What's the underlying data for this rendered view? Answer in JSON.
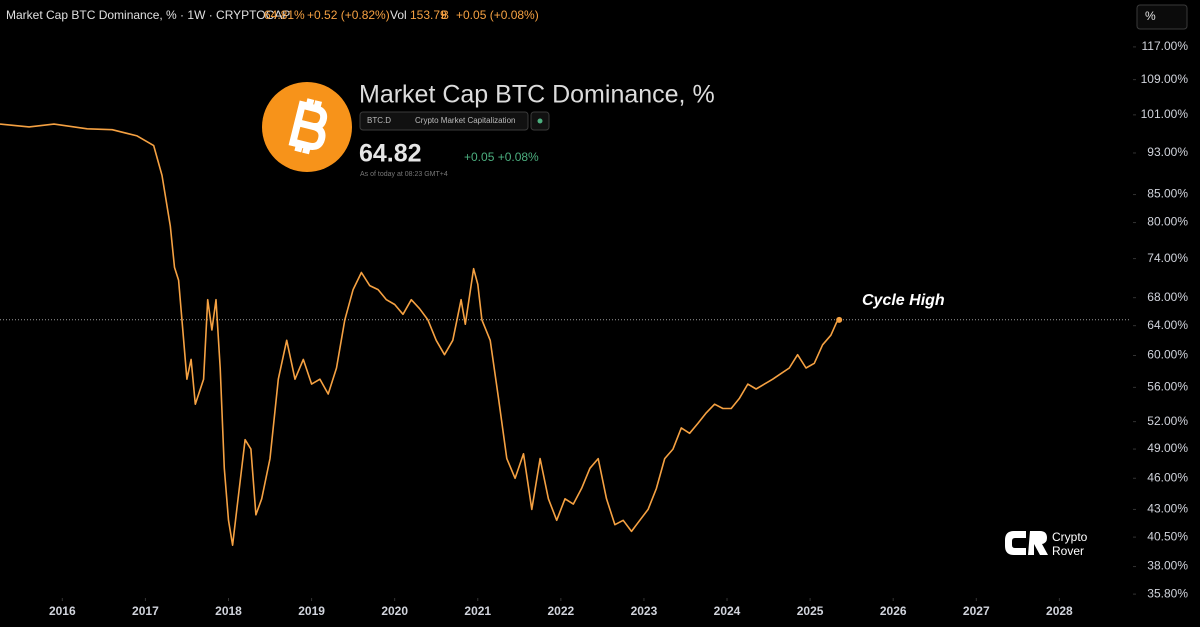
{
  "header": {
    "symbol": "Market Cap BTC Dominance, % · 1W · CRYPTOCAP",
    "last": "64.81%",
    "change": "+0.52 (+0.82%)",
    "vol_label": "Vol",
    "vol_value": "153.79",
    "vol_unit": "B",
    "vol_change": "+0.05 (+0.08%)"
  },
  "controls": {
    "scale_button": "%"
  },
  "overlay": {
    "title": "Market Cap BTC Dominance, %",
    "ticker": "BTC.D",
    "exchange": "Crypto Market Capitalization",
    "price": 64.82,
    "change": "+0.05 +0.08%",
    "timestamp": "As of today at 08:23 GMT+4"
  },
  "watermark": {
    "line1": "Crypto",
    "line2": "Rover"
  },
  "chart_data": {
    "type": "line",
    "log_scale": true,
    "annotation": "Cycle High",
    "x": [
      2015.25,
      2015.6,
      2015.9,
      2016.3,
      2016.6,
      2016.9,
      2017.1,
      2017.2,
      2017.3,
      2017.35,
      2017.4,
      2017.45,
      2017.5,
      2017.55,
      2017.6,
      2017.7,
      2017.75,
      2017.8,
      2017.85,
      2017.9,
      2017.95,
      2018.0,
      2018.05,
      2018.1,
      2018.2,
      2018.27,
      2018.33,
      2018.4,
      2018.5,
      2018.6,
      2018.7,
      2018.8,
      2018.9,
      2019.0,
      2019.1,
      2019.2,
      2019.3,
      2019.4,
      2019.5,
      2019.6,
      2019.7,
      2019.8,
      2019.9,
      2020.0,
      2020.1,
      2020.2,
      2020.3,
      2020.4,
      2020.5,
      2020.6,
      2020.7,
      2020.8,
      2020.85,
      2020.95,
      2021.0,
      2021.05,
      2021.15,
      2021.25,
      2021.35,
      2021.45,
      2021.55,
      2021.65,
      2021.75,
      2021.85,
      2021.95,
      2022.05,
      2022.15,
      2022.25,
      2022.35,
      2022.45,
      2022.55,
      2022.65,
      2022.75,
      2022.85,
      2022.95,
      2023.05,
      2023.15,
      2023.25,
      2023.35,
      2023.45,
      2023.55,
      2023.65,
      2023.75,
      2023.85,
      2023.95,
      2024.05,
      2024.15,
      2024.25,
      2024.35,
      2024.45,
      2024.55,
      2024.65,
      2024.75,
      2024.85,
      2024.95,
      2025.05,
      2025.15,
      2025.25,
      2025.32,
      2025.35
    ],
    "series": [
      {
        "name": "BTC.D",
        "color": "#f5a142",
        "values": [
          99,
          98.4,
          99,
          98,
          97.8,
          96.5,
          94.5,
          88.6,
          79.4,
          72.6,
          70.6,
          63.4,
          57,
          59.5,
          54,
          57,
          67.7,
          63.4,
          67.7,
          58.4,
          47,
          42,
          39.8,
          43,
          50,
          49,
          42.5,
          44,
          48,
          57,
          62,
          57,
          59.5,
          56.4,
          57,
          55.2,
          58.4,
          64.8,
          69.2,
          71.8,
          69.8,
          69.2,
          67.7,
          67,
          65.6,
          67.7,
          66.4,
          64.8,
          62,
          60.1,
          62,
          67.7,
          64.2,
          72.4,
          70,
          64.8,
          62,
          54.7,
          48,
          46,
          48.5,
          43,
          48,
          44,
          42,
          44,
          43.5,
          45,
          47,
          48,
          44,
          41.6,
          42,
          41,
          42,
          43,
          45,
          48,
          49,
          51.3,
          50.7,
          51.8,
          53,
          54,
          53.5,
          53.5,
          54.7,
          56.4,
          55.8,
          56.4,
          57,
          57.7,
          58.4,
          60.1,
          58.4,
          59,
          61.4,
          62.7,
          64.5,
          64.8
        ]
      }
    ],
    "xlim": [
      2015.25,
      2028.85
    ],
    "xticks": [
      2016,
      2017,
      2018,
      2019,
      2020,
      2021,
      2022,
      2023,
      2024,
      2025,
      2026,
      2027,
      2028
    ],
    "ylim": [
      35.5,
      129.5
    ],
    "yticks": [
      {
        "value": 35.8,
        "label": "35.80%"
      },
      {
        "value": 38,
        "label": "38.00%"
      },
      {
        "value": 40.5,
        "label": "40.50%"
      },
      {
        "value": 43,
        "label": "43.00%"
      },
      {
        "value": 46,
        "label": "46.00%"
      },
      {
        "value": 49,
        "label": "49.00%"
      },
      {
        "value": 52,
        "label": "52.00%"
      },
      {
        "value": 56,
        "label": "56.00%"
      },
      {
        "value": 60,
        "label": "60.00%"
      },
      {
        "value": 64,
        "label": "64.00%"
      },
      {
        "value": 68,
        "label": "68.00%"
      },
      {
        "value": 74,
        "label": "74.00%"
      },
      {
        "value": 80,
        "label": "80.00%"
      },
      {
        "value": 85,
        "label": "85.00%"
      },
      {
        "value": 93,
        "label": "93.00%"
      },
      {
        "value": 101,
        "label": "101.00%"
      },
      {
        "value": 109,
        "label": "109.00%"
      },
      {
        "value": 117,
        "label": "117.00%"
      }
    ],
    "grid": false
  }
}
